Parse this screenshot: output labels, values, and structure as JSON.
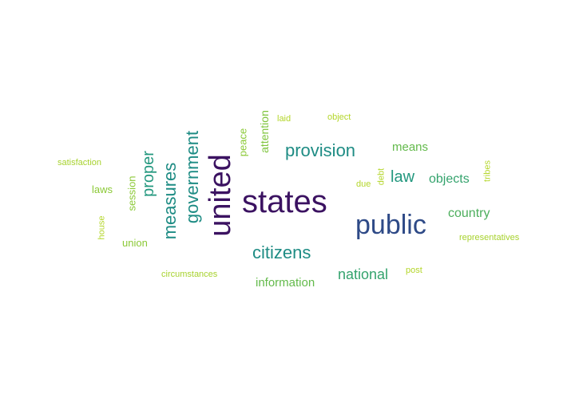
{
  "words": [
    {
      "text": "states",
      "weight": 1.0,
      "color": "#3b1261",
      "vertical": false
    },
    {
      "text": "united",
      "weight": 1.0,
      "color": "#3b1261",
      "vertical": true
    },
    {
      "text": "public",
      "weight": 0.85,
      "color": "#2e4a87",
      "vertical": false
    },
    {
      "text": "provision",
      "weight": 0.5,
      "color": "#1e8c84",
      "vertical": false
    },
    {
      "text": "citizens",
      "weight": 0.5,
      "color": "#1e8c84",
      "vertical": false
    },
    {
      "text": "government",
      "weight": 0.5,
      "color": "#1e8c84",
      "vertical": true
    },
    {
      "text": "measures",
      "weight": 0.5,
      "color": "#1e8c84",
      "vertical": true
    },
    {
      "text": "proper",
      "weight": 0.45,
      "color": "#22977e",
      "vertical": true
    },
    {
      "text": "law",
      "weight": 0.45,
      "color": "#22977e",
      "vertical": false
    },
    {
      "text": "national",
      "weight": 0.4,
      "color": "#34a36d",
      "vertical": false
    },
    {
      "text": "objects",
      "weight": 0.35,
      "color": "#34a36d",
      "vertical": false
    },
    {
      "text": "country",
      "weight": 0.35,
      "color": "#4cae5c",
      "vertical": false
    },
    {
      "text": "means",
      "weight": 0.3,
      "color": "#63ba4b",
      "vertical": false
    },
    {
      "text": "information",
      "weight": 0.3,
      "color": "#63ba4b",
      "vertical": false
    },
    {
      "text": "attention",
      "weight": 0.3,
      "color": "#7ec43c",
      "vertical": true
    },
    {
      "text": "peace",
      "weight": 0.25,
      "color": "#8bc936",
      "vertical": true
    },
    {
      "text": "session",
      "weight": 0.25,
      "color": "#8bc936",
      "vertical": true
    },
    {
      "text": "laws",
      "weight": 0.25,
      "color": "#8bc936",
      "vertical": false
    },
    {
      "text": "union",
      "weight": 0.25,
      "color": "#8bc936",
      "vertical": false
    },
    {
      "text": "representatives",
      "weight": 0.2,
      "color": "#a7d22e",
      "vertical": false
    },
    {
      "text": "circumstances",
      "weight": 0.2,
      "color": "#a7d22e",
      "vertical": false
    },
    {
      "text": "satisfaction",
      "weight": 0.2,
      "color": "#a7d22e",
      "vertical": false
    },
    {
      "text": "laid",
      "weight": 0.2,
      "color": "#b4d62b",
      "vertical": false
    },
    {
      "text": "object",
      "weight": 0.2,
      "color": "#b4d62b",
      "vertical": false
    },
    {
      "text": "tribes",
      "weight": 0.2,
      "color": "#b4d62b",
      "vertical": true
    },
    {
      "text": "debt",
      "weight": 0.2,
      "color": "#b4d62b",
      "vertical": true
    },
    {
      "text": "due",
      "weight": 0.2,
      "color": "#b4d62b",
      "vertical": false
    },
    {
      "text": "post",
      "weight": 0.2,
      "color": "#b4d62b",
      "vertical": false
    },
    {
      "text": "house",
      "weight": 0.2,
      "color": "#b4d62b",
      "vertical": true
    }
  ]
}
